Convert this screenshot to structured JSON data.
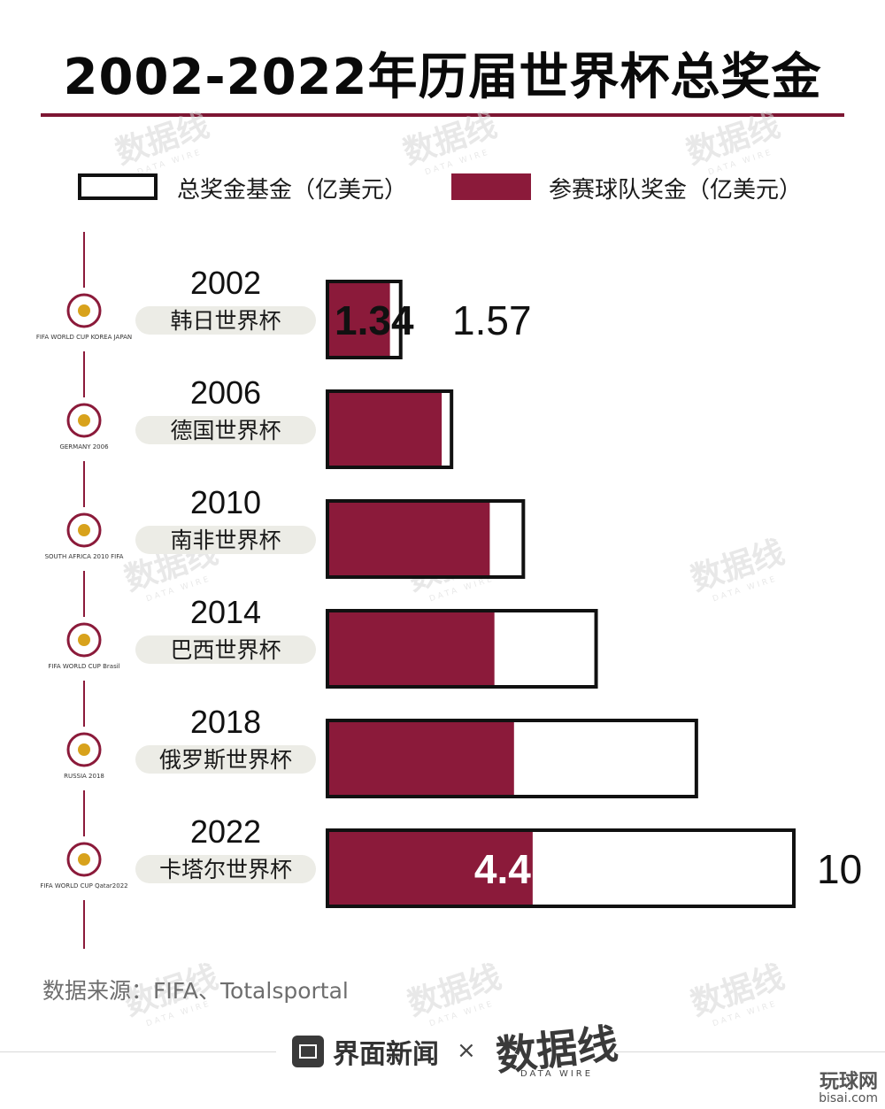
{
  "title": "2002-2022年历届世界杯总奖金",
  "legend": {
    "total": "总奖金基金（亿美元）",
    "team": "参赛球队奖金（亿美元）"
  },
  "source": "数据来源：FIFA、Totalsportal",
  "footer": {
    "brand1": "界面新闻",
    "separator": "×",
    "brand2": "数据线",
    "brand2_sub": "DATA WIRE"
  },
  "corner_watermark": {
    "main": "玩球网",
    "sub": "bisai.com"
  },
  "watermark_text": "数据线",
  "watermark_sub": "DATA WIRE",
  "colors": {
    "accent": "#8b1a3a",
    "outline": "#111111",
    "badge": "#ecece6"
  },
  "chart_data": {
    "type": "bar",
    "orientation": "horizontal",
    "title": "2002-2022年历届世界杯总奖金",
    "categories": [
      "2002",
      "2006",
      "2010",
      "2014",
      "2018",
      "2022"
    ],
    "category_names": [
      "韩日世界杯",
      "德国世界杯",
      "南非世界杯",
      "巴西世界杯",
      "俄罗斯世界杯",
      "卡塔尔世界杯"
    ],
    "logo_captions": [
      "FIFA WORLD CUP KOREA JAPAN",
      "GERMANY 2006",
      "SOUTH AFRICA 2010 FIFA",
      "FIFA WORLD CUP Brasil",
      "RUSSIA 2018",
      "FIFA WORLD CUP Qatar2022"
    ],
    "series": [
      {
        "name": "总奖金基金（亿美元）",
        "values": [
          1.57,
          2.66,
          4.2,
          5.76,
          7.91,
          10
        ]
      },
      {
        "name": "参赛球队奖金（亿美元）",
        "values": [
          1.34,
          2.45,
          3.48,
          3.58,
          4.0,
          4.4
        ]
      }
    ],
    "data_labels": {
      "total": [
        "1.57",
        "",
        "",
        "",
        "",
        "10"
      ],
      "team": [
        "1.34",
        "",
        "",
        "",
        "",
        "4.4"
      ]
    },
    "xlim": [
      0,
      10
    ],
    "grid": false,
    "legend_position": "top"
  }
}
